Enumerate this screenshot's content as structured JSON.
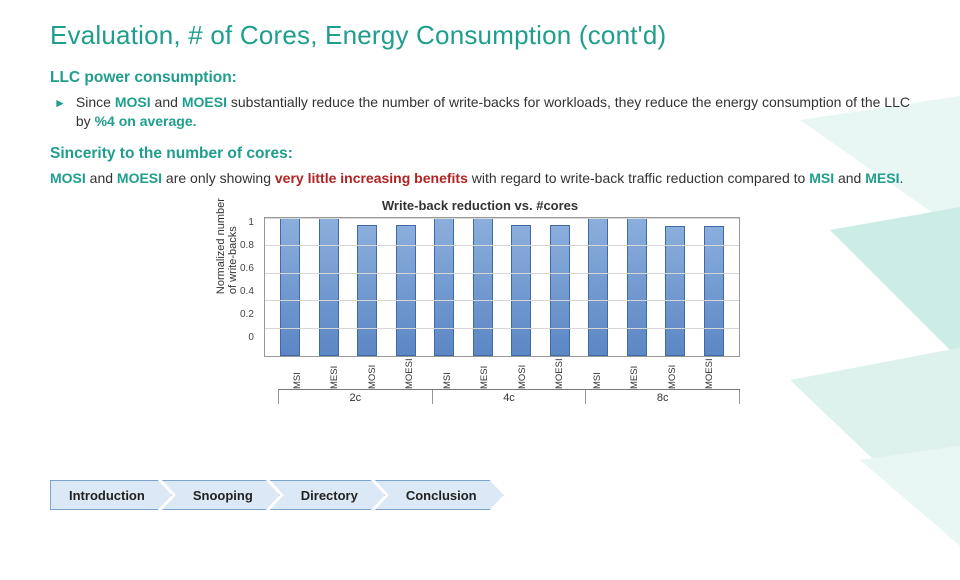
{
  "title": "Evaluation, # of Cores, Energy Consumption (cont'd)",
  "section1": {
    "heading": "LLC power consumption:",
    "bullet_prefix": "Since ",
    "mosi": "MOSI",
    "and": " and ",
    "moesi": "MOESI",
    "mid": " substantially reduce the number of write-backs for workloads, they reduce the energy consumption of the LLC by ",
    "pct": "%4 on average.",
    "bullet_glyph": "►"
  },
  "section2": {
    "heading": "Sincerity to the number of cores:",
    "p_pre": "MOSI",
    "p_and": " and ",
    "p_moesi": "MOESI",
    "p_mid1": " are only showing ",
    "p_red": "very little increasing benefits",
    "p_mid2": " with regard to write-back traffic reduction compared to ",
    "p_msi": "MSI",
    "p_and2": " and ",
    "p_mesi": "MESI",
    "p_end": "."
  },
  "chart": {
    "title": "Write-back reduction vs. #cores",
    "y_label": "Normalized number\nof write-backs",
    "y_ticks": [
      "1",
      "0.8",
      "0.6",
      "0.4",
      "0.2",
      "0"
    ],
    "ylim": [
      0,
      1
    ],
    "grid_positions_pct": [
      0,
      20,
      40,
      60,
      80
    ],
    "categories": [
      "MSI",
      "MESI",
      "MOSI",
      "MOESI",
      "MSI",
      "MESI",
      "MOSI",
      "MOESI",
      "MSI",
      "MESI",
      "MOSI",
      "MOESI"
    ],
    "values": [
      1.0,
      1.0,
      0.95,
      0.95,
      1.0,
      1.0,
      0.95,
      0.95,
      1.0,
      1.0,
      0.94,
      0.94
    ],
    "groups": [
      "2c",
      "4c",
      "8c"
    ],
    "bar_gradient_top": "#8baedc",
    "bar_gradient_bottom": "#5c87c4",
    "bar_border": "#3e6aa8",
    "grid_color": "#d6d6d6",
    "axis_color": "#999999",
    "label_fontsize": 11,
    "tick_fontsize": 10,
    "title_fontsize": 13
  },
  "nav": {
    "items": [
      "Introduction",
      "Snooping",
      "Directory",
      "Conclusion"
    ],
    "fill": "#dbe9f7",
    "border": "#7da3cf"
  },
  "colors": {
    "accent_green": "#1f9e8e",
    "accent_red": "#b22222",
    "text": "#333333",
    "background": "#ffffff"
  },
  "deco": {
    "fill_light": "#bfe8e0",
    "fill_mid": "#6fc9b8",
    "fill_dark": "#9fd9cd"
  }
}
